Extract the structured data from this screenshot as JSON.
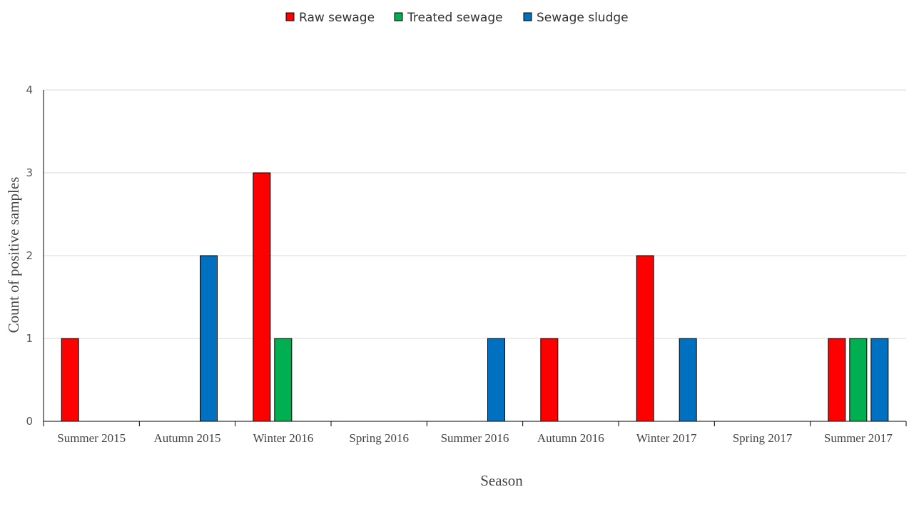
{
  "chart_data": {
    "type": "bar",
    "title": "",
    "xlabel": "Season",
    "ylabel": "Count of positive samples",
    "ylim": [
      0,
      4
    ],
    "yticks": [
      0,
      1,
      2,
      3,
      4
    ],
    "grid": true,
    "legend_position": "top-center",
    "categories": [
      "Summer 2015",
      "Autumn 2015",
      "Winter 2016",
      "Spring 2016",
      "Summer 2016",
      "Autumn 2016",
      "Winter 2017",
      "Spring 2017",
      "Summer 2017"
    ],
    "series": [
      {
        "name": "Raw sewage",
        "color": "#ff0000",
        "values": [
          1,
          0,
          3,
          0,
          0,
          1,
          2,
          0,
          1
        ]
      },
      {
        "name": "Treated sewage",
        "color": "#00b050",
        "values": [
          0,
          0,
          1,
          0,
          0,
          0,
          0,
          0,
          1
        ]
      },
      {
        "name": "Sewage sludge",
        "color": "#0070c0",
        "values": [
          0,
          2,
          0,
          0,
          1,
          0,
          1,
          0,
          1
        ]
      }
    ]
  }
}
